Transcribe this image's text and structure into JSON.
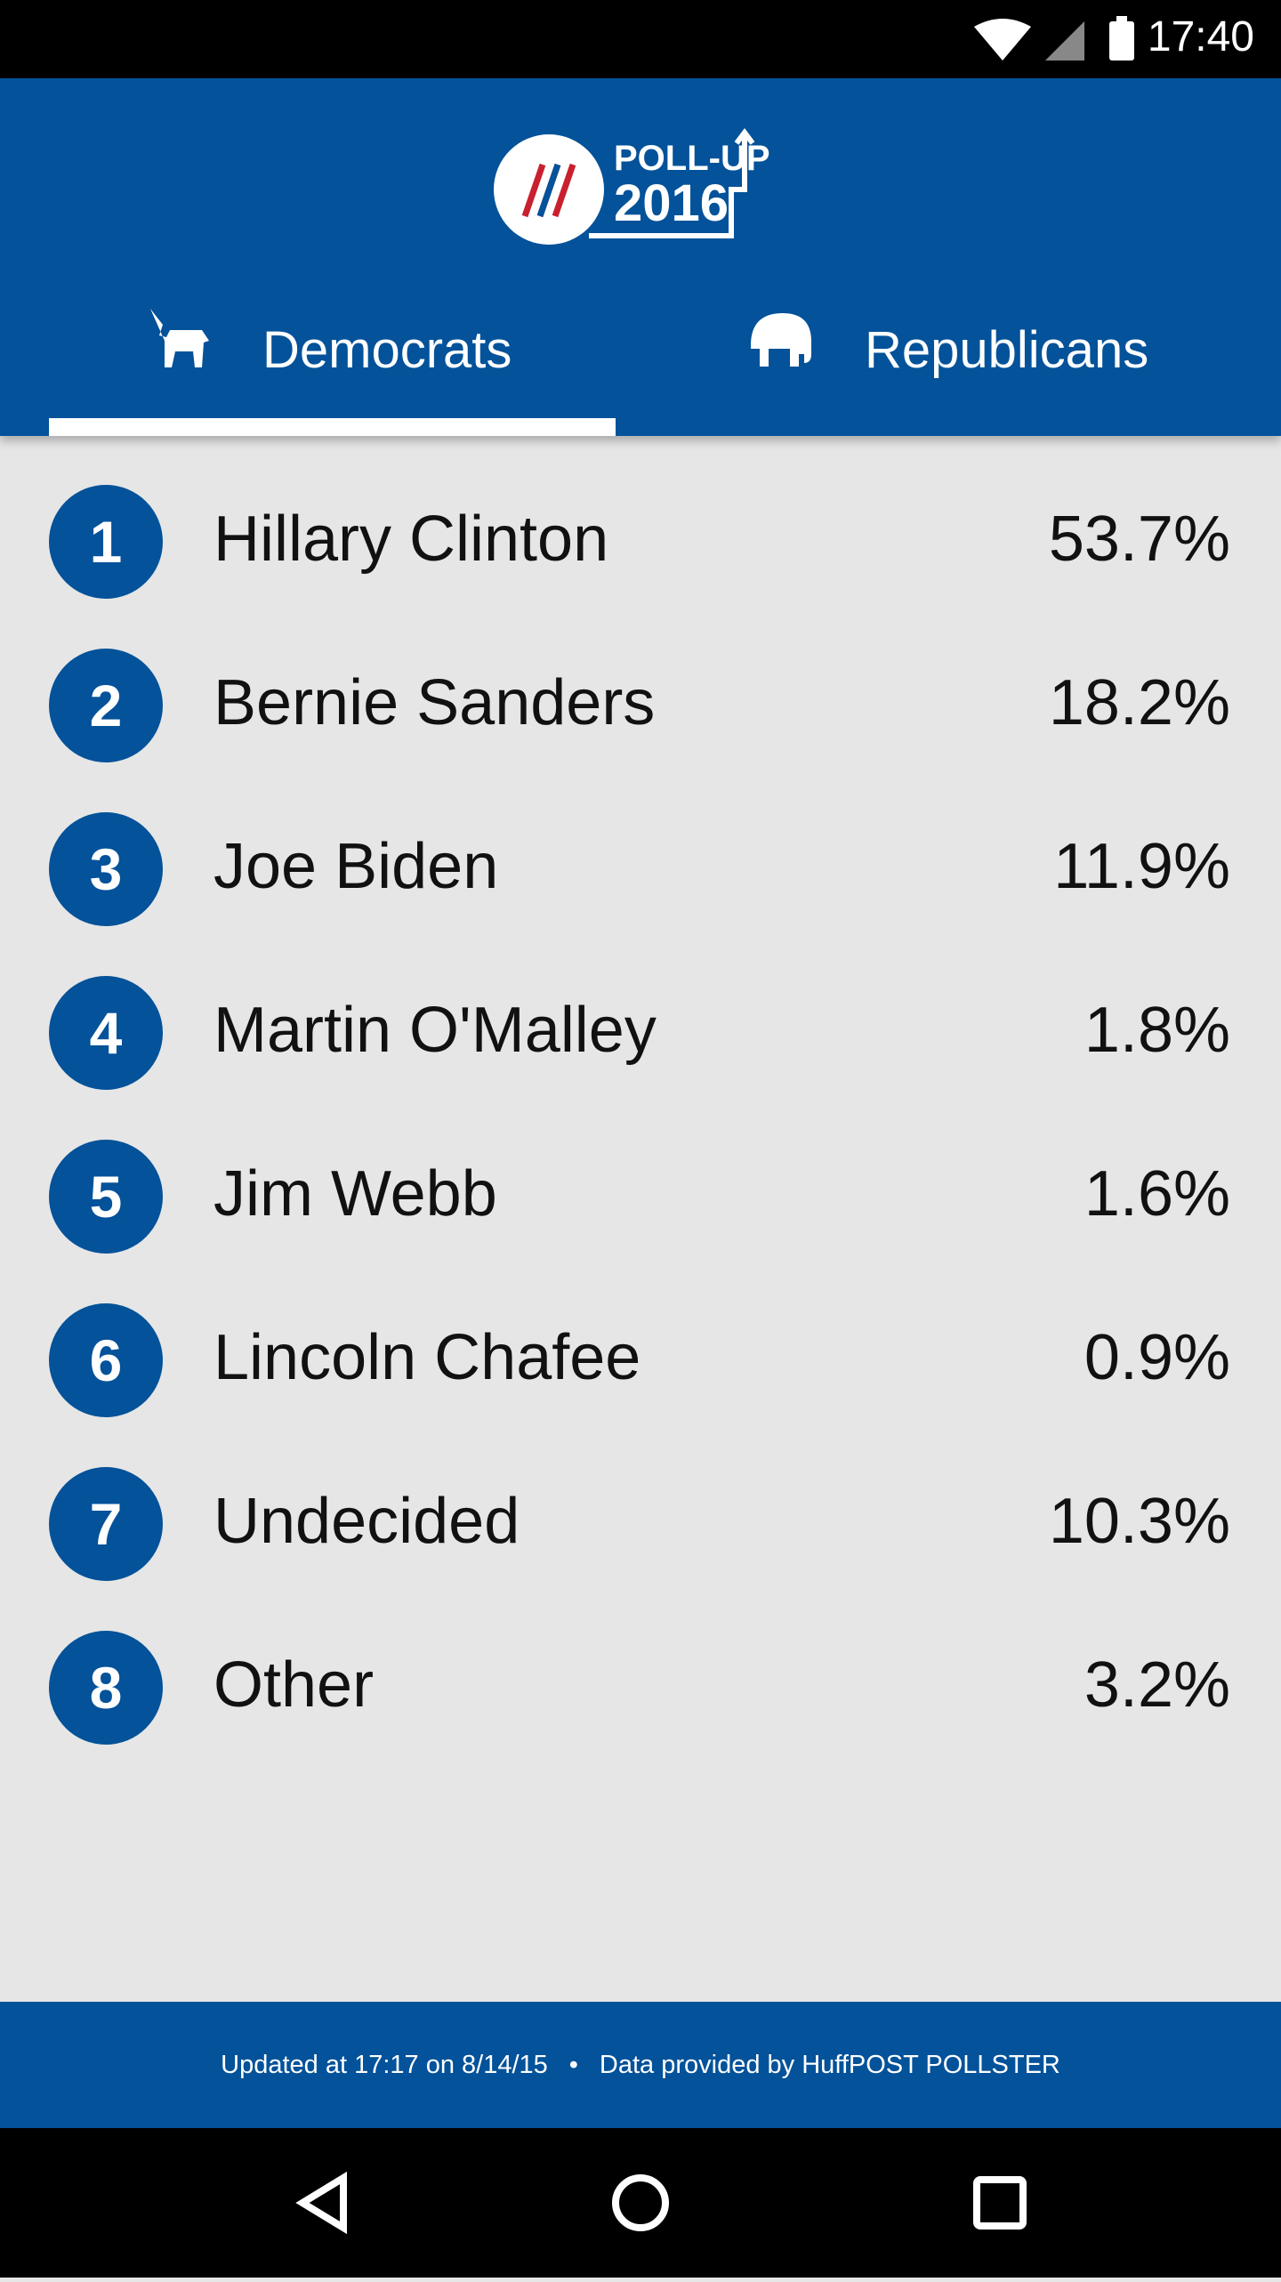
{
  "status": {
    "time": "17:40"
  },
  "header": {
    "logo_top": "POLL-UP",
    "logo_bottom": "2016"
  },
  "tabs": [
    "Democrats",
    "Republicans"
  ],
  "list": [
    {
      "rank": "1",
      "name": "Hillary Clinton",
      "value": "53.7%"
    },
    {
      "rank": "2",
      "name": "Bernie Sanders",
      "value": "18.2%"
    },
    {
      "rank": "3",
      "name": "Joe Biden",
      "value": "11.9%"
    },
    {
      "rank": "4",
      "name": "Martin O'Malley",
      "value": "1.8%"
    },
    {
      "rank": "5",
      "name": "Jim Webb",
      "value": "1.6%"
    },
    {
      "rank": "6",
      "name": "Lincoln Chafee",
      "value": "0.9%"
    },
    {
      "rank": "7",
      "name": "Undecided",
      "value": "10.3%"
    },
    {
      "rank": "8",
      "name": "Other",
      "value": "3.2%"
    }
  ],
  "footer": {
    "updated": "Updated at 17:17 on 8/14/15",
    "source": "Data provided by HuffPOST POLLSTER"
  }
}
